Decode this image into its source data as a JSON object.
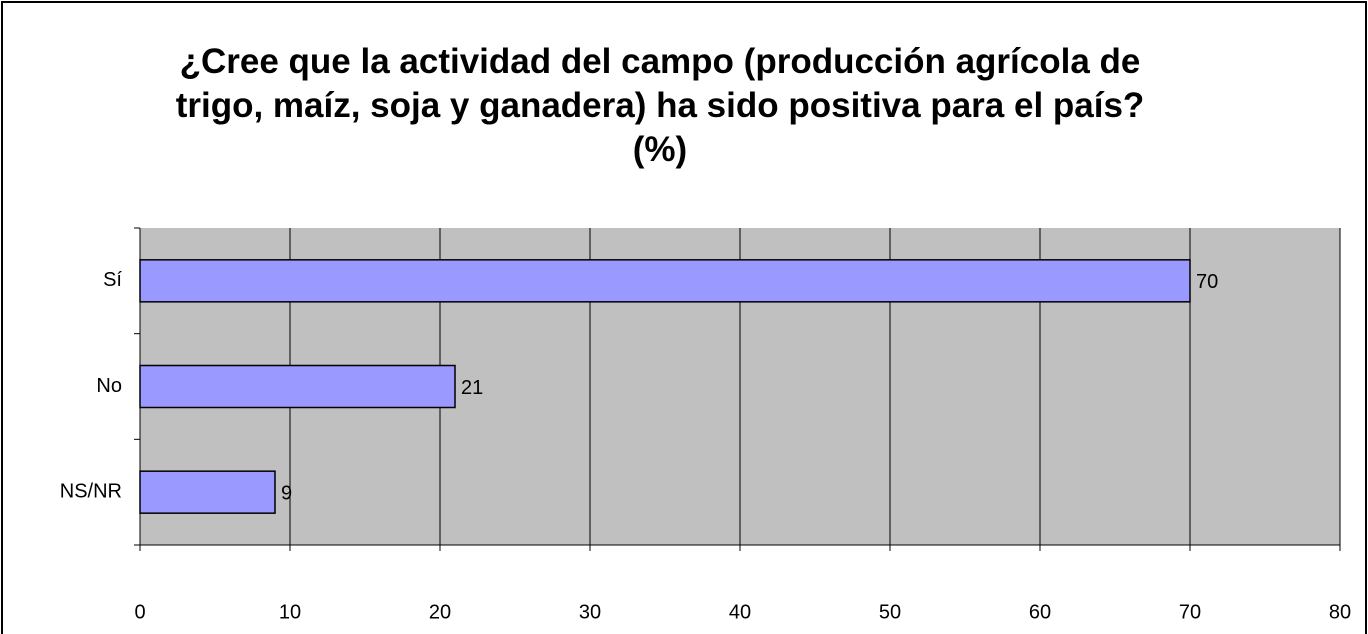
{
  "chart_data": {
    "type": "bar",
    "orientation": "horizontal",
    "title": "¿Cree que la actividad del campo (producción agrícola de trigo, maíz, soja y ganadera) ha sido positiva para el país? (%)",
    "categories": [
      "Sí",
      "No",
      "NS/NR"
    ],
    "values": [
      70,
      21,
      9
    ],
    "color": "#9999ff",
    "xlim": [
      0,
      80
    ],
    "xticks": [
      0,
      10,
      20,
      30,
      40,
      50,
      60,
      70,
      80
    ],
    "grid": true
  }
}
